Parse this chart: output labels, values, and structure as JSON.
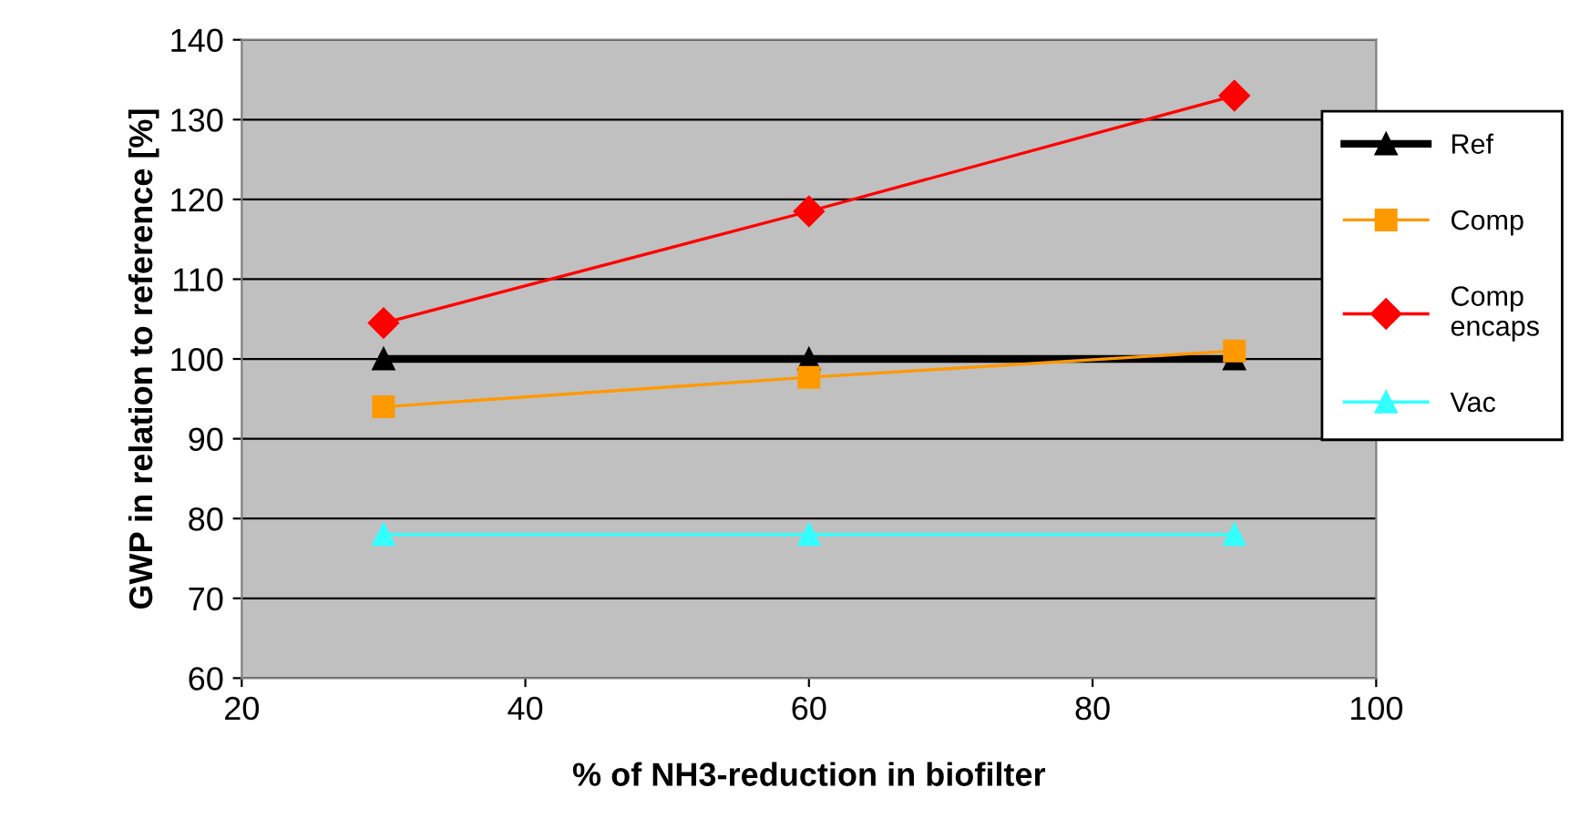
{
  "chart_data": {
    "type": "line",
    "xlabel": "% of NH3-reduction in biofilter",
    "ylabel": "GWP in relation to reference [%]",
    "x": [
      30,
      60,
      90
    ],
    "xlim": [
      20,
      100
    ],
    "xticks": [
      20,
      40,
      60,
      80,
      100
    ],
    "ylim": [
      60,
      140
    ],
    "yticks": [
      60,
      70,
      80,
      90,
      100,
      110,
      120,
      130,
      140
    ],
    "grid": "y",
    "legend": "right",
    "series": [
      {
        "name": "Ref",
        "color": "#000000",
        "values": [
          100,
          100,
          100
        ],
        "marker": "triangle"
      },
      {
        "name": "Comp",
        "color": "#ff9900",
        "values": [
          94,
          97.7,
          101
        ],
        "marker": "square"
      },
      {
        "name": "Comp\nencaps",
        "color": "#ff0000",
        "values": [
          104.5,
          118.5,
          133
        ],
        "marker": "diamond"
      },
      {
        "name": "Vac",
        "color": "#33ffff",
        "values": [
          78,
          78,
          78
        ],
        "marker": "triangle"
      }
    ]
  }
}
